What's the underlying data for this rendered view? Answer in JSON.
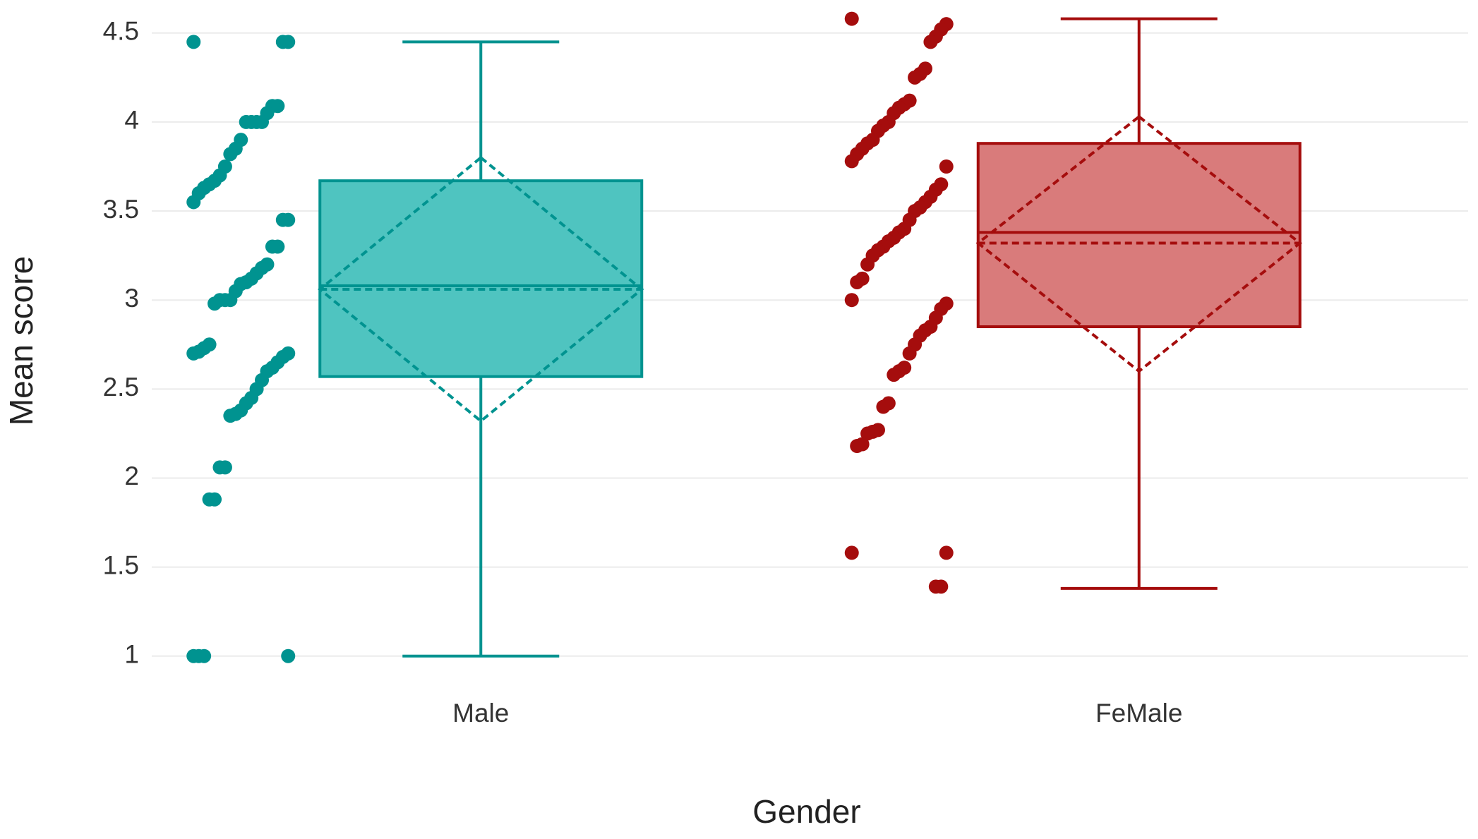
{
  "chart_data": {
    "type": "box",
    "xlabel": "Gender",
    "ylabel": "Mean score",
    "categories": [
      "Male",
      "FeMale"
    ],
    "ylim": [
      0.88,
      4.63
    ],
    "yticks": [
      1,
      1.5,
      2,
      2.5,
      3,
      3.5,
      4,
      4.5
    ],
    "grid": true,
    "boxes": [
      {
        "color": "#009390",
        "fill": "#4fc4c0",
        "whisker_low": 1,
        "q1": 2.57,
        "median": 3.08,
        "q3": 3.67,
        "whisker_high": 4.45,
        "mean": 3.06,
        "mean_low": 2.32,
        "mean_high": 3.8,
        "points": [
          4.45,
          4.45,
          4.45,
          4.09,
          4.09,
          4.05,
          4.0,
          4.0,
          4.0,
          4.0,
          3.9,
          3.85,
          3.82,
          3.75,
          3.7,
          3.67,
          3.65,
          3.63,
          3.6,
          3.55,
          3.45,
          3.45,
          3.3,
          3.3,
          3.2,
          3.18,
          3.15,
          3.12,
          3.1,
          3.09,
          3.05,
          3.0,
          3.0,
          3.0,
          2.98,
          2.75,
          2.73,
          2.71,
          2.7,
          2.7,
          2.68,
          2.65,
          2.62,
          2.6,
          2.55,
          2.5,
          2.45,
          2.42,
          2.38,
          2.36,
          2.35,
          2.06,
          2.06,
          1.88,
          1.88,
          1,
          1,
          1,
          1
        ]
      },
      {
        "color": "#a50d0d",
        "fill": "#d97b7b",
        "whisker_low": 1.38,
        "q1": 2.85,
        "median": 3.38,
        "q3": 3.88,
        "whisker_high": 4.58,
        "mean": 3.32,
        "mean_low": 2.6,
        "mean_high": 4.03,
        "points": [
          4.58,
          4.55,
          4.52,
          4.48,
          4.45,
          4.3,
          4.27,
          4.25,
          4.12,
          4.1,
          4.08,
          4.05,
          4.0,
          3.98,
          3.95,
          3.9,
          3.88,
          3.85,
          3.82,
          3.78,
          3.75,
          3.65,
          3.62,
          3.58,
          3.55,
          3.52,
          3.5,
          3.45,
          3.4,
          3.38,
          3.35,
          3.33,
          3.3,
          3.28,
          3.25,
          3.2,
          3.12,
          3.1,
          3.0,
          2.98,
          2.95,
          2.9,
          2.85,
          2.83,
          2.8,
          2.75,
          2.7,
          2.62,
          2.6,
          2.58,
          2.42,
          2.4,
          2.27,
          2.26,
          2.25,
          2.19,
          2.18,
          1.58,
          1.58,
          1.39,
          1.39
        ]
      }
    ]
  }
}
